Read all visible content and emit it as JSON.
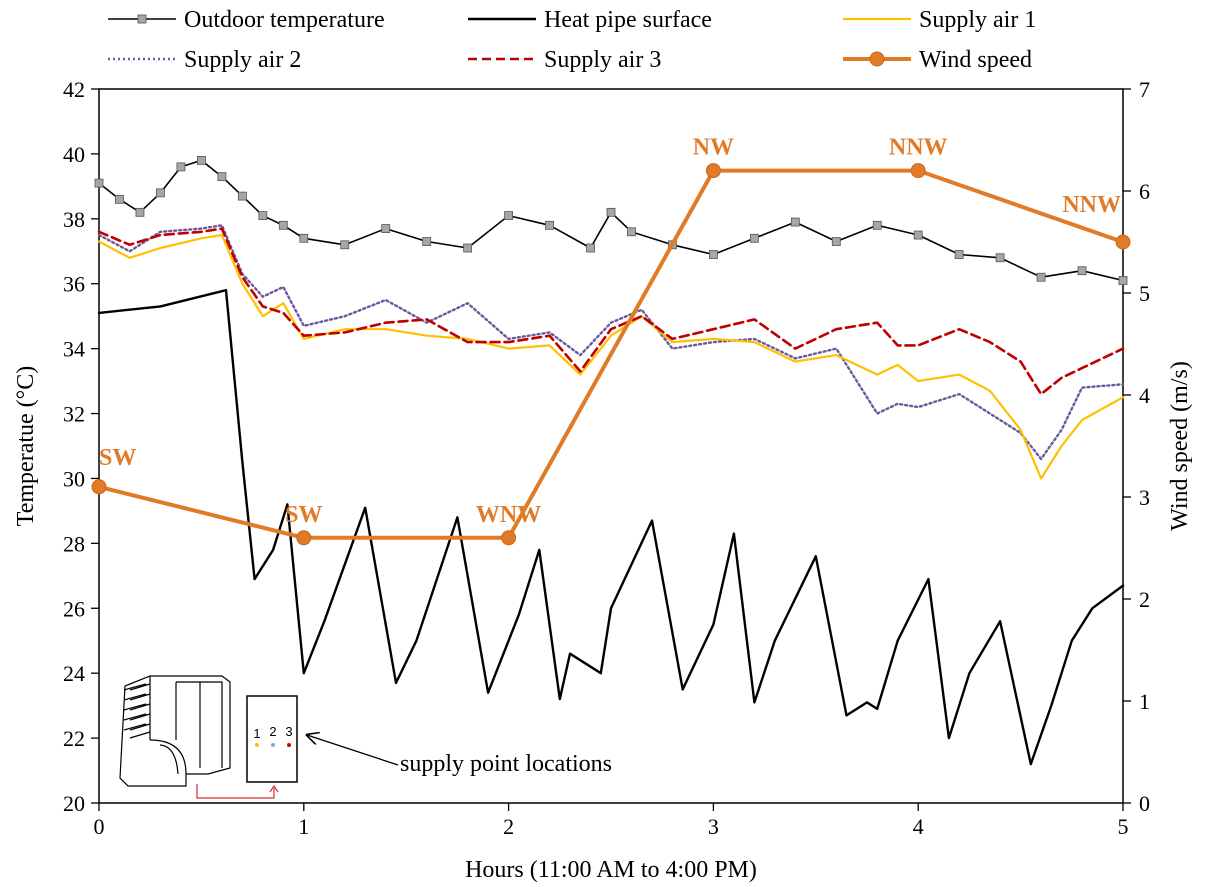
{
  "chart_data": {
    "type": "line",
    "xlabel": "Hours (11:00 AM to 4:00 PM)",
    "ylabel_left": "Temperatue (°C)",
    "ylabel_right": "Wind speed (m/s)",
    "xlim": [
      0,
      5
    ],
    "ylim_left": [
      20,
      42
    ],
    "ylim_right": [
      0,
      7
    ],
    "x_ticks": [
      "0",
      "1",
      "2",
      "3",
      "4",
      "5"
    ],
    "y_left_ticks": [
      "20",
      "22",
      "24",
      "26",
      "28",
      "30",
      "32",
      "34",
      "36",
      "38",
      "40",
      "42"
    ],
    "y_right_ticks": [
      "0",
      "1",
      "2",
      "3",
      "4",
      "5",
      "6",
      "7"
    ],
    "grid": false,
    "legend_position": "top",
    "legend": [
      {
        "label": "Outdoor temperature",
        "color": "#000000",
        "style": "line-square-marker"
      },
      {
        "label": "Heat pipe surface",
        "color": "#000000",
        "style": "solid"
      },
      {
        "label": "Supply air 1",
        "color": "#ffc000",
        "style": "solid"
      },
      {
        "label": "Supply air 2",
        "color": "#6a5a9a",
        "style": "dotted"
      },
      {
        "label": "Supply air 3",
        "color": "#c00000",
        "style": "dashed"
      },
      {
        "label": "Wind speed",
        "color": "#e07b28",
        "style": "thick-circle-marker"
      }
    ],
    "series": [
      {
        "name": "Outdoor temperature",
        "axis": "left",
        "x": [
          0,
          0.1,
          0.2,
          0.3,
          0.4,
          0.5,
          0.6,
          0.7,
          0.8,
          0.9,
          1.0,
          1.2,
          1.4,
          1.6,
          1.8,
          2.0,
          2.2,
          2.4,
          2.5,
          2.6,
          2.8,
          3.0,
          3.2,
          3.4,
          3.6,
          3.8,
          4.0,
          4.2,
          4.4,
          4.6,
          4.8,
          5.0
        ],
        "y": [
          39.1,
          38.6,
          38.2,
          38.8,
          39.6,
          39.8,
          39.3,
          38.7,
          38.1,
          37.8,
          37.4,
          37.2,
          37.7,
          37.3,
          37.1,
          38.1,
          37.8,
          37.1,
          38.2,
          37.6,
          37.2,
          36.9,
          37.4,
          37.9,
          37.3,
          37.8,
          37.5,
          36.9,
          36.8,
          36.2,
          36.4,
          36.1
        ]
      },
      {
        "name": "Heat pipe surface",
        "axis": "left",
        "x": [
          0,
          0.3,
          0.62,
          0.7,
          0.76,
          0.85,
          0.92,
          1.0,
          1.1,
          1.3,
          1.45,
          1.55,
          1.75,
          1.9,
          2.05,
          2.15,
          2.25,
          2.3,
          2.45,
          2.5,
          2.7,
          2.85,
          3.0,
          3.1,
          3.2,
          3.3,
          3.5,
          3.65,
          3.75,
          3.8,
          3.9,
          4.05,
          4.15,
          4.25,
          4.4,
          4.55,
          4.65,
          4.75,
          4.85,
          5.0
        ],
        "y": [
          35.1,
          35.3,
          35.8,
          30.5,
          26.9,
          27.8,
          29.2,
          24.0,
          25.6,
          29.1,
          23.7,
          25.0,
          28.8,
          23.4,
          25.8,
          27.8,
          23.2,
          24.6,
          24.0,
          26.0,
          28.7,
          23.5,
          25.5,
          28.3,
          23.1,
          25.0,
          27.6,
          22.7,
          23.1,
          22.9,
          25.0,
          26.9,
          22.0,
          24.0,
          25.6,
          21.2,
          23.0,
          25.0,
          26.0,
          26.7
        ]
      },
      {
        "name": "Supply air 1",
        "axis": "left",
        "x": [
          0,
          0.15,
          0.3,
          0.5,
          0.6,
          0.7,
          0.8,
          0.9,
          1.0,
          1.2,
          1.4,
          1.6,
          1.8,
          2.0,
          2.2,
          2.35,
          2.5,
          2.65,
          2.8,
          3.0,
          3.2,
          3.4,
          3.6,
          3.8,
          3.9,
          4.0,
          4.2,
          4.35,
          4.5,
          4.6,
          4.7,
          4.8,
          5.0
        ],
        "y": [
          37.3,
          36.8,
          37.1,
          37.4,
          37.5,
          36.0,
          35.0,
          35.4,
          34.3,
          34.6,
          34.6,
          34.4,
          34.3,
          34.0,
          34.1,
          33.2,
          34.4,
          35.0,
          34.2,
          34.3,
          34.2,
          33.6,
          33.8,
          33.2,
          33.5,
          33.0,
          33.2,
          32.7,
          31.5,
          30.0,
          31.0,
          31.8,
          32.5
        ]
      },
      {
        "name": "Supply air 2",
        "axis": "left",
        "x": [
          0,
          0.15,
          0.3,
          0.5,
          0.6,
          0.7,
          0.8,
          0.9,
          1.0,
          1.2,
          1.4,
          1.6,
          1.8,
          2.0,
          2.2,
          2.35,
          2.5,
          2.65,
          2.8,
          3.0,
          3.2,
          3.4,
          3.6,
          3.8,
          3.9,
          4.0,
          4.2,
          4.35,
          4.5,
          4.6,
          4.7,
          4.8,
          5.0
        ],
        "y": [
          37.5,
          37.0,
          37.6,
          37.7,
          37.8,
          36.3,
          35.6,
          35.9,
          34.7,
          35.0,
          35.5,
          34.8,
          35.4,
          34.3,
          34.5,
          33.8,
          34.8,
          35.2,
          34.0,
          34.2,
          34.3,
          33.7,
          34.0,
          32.0,
          32.3,
          32.2,
          32.6,
          32.0,
          31.4,
          30.6,
          31.5,
          32.8,
          32.9
        ]
      },
      {
        "name": "Supply air 3",
        "axis": "left",
        "x": [
          0,
          0.15,
          0.3,
          0.5,
          0.6,
          0.7,
          0.8,
          0.9,
          1.0,
          1.2,
          1.4,
          1.6,
          1.8,
          2.0,
          2.2,
          2.35,
          2.5,
          2.65,
          2.8,
          3.0,
          3.2,
          3.4,
          3.6,
          3.8,
          3.9,
          4.0,
          4.2,
          4.35,
          4.5,
          4.6,
          4.7,
          4.8,
          5.0
        ],
        "y": [
          37.6,
          37.2,
          37.5,
          37.6,
          37.7,
          36.2,
          35.3,
          35.1,
          34.4,
          34.5,
          34.8,
          34.9,
          34.2,
          34.2,
          34.4,
          33.3,
          34.6,
          35.0,
          34.3,
          34.6,
          34.9,
          34.0,
          34.6,
          34.8,
          34.1,
          34.1,
          34.6,
          34.2,
          33.6,
          32.6,
          33.1,
          33.4,
          34.0
        ]
      },
      {
        "name": "Wind speed",
        "axis": "right",
        "x": [
          0,
          1,
          2,
          3,
          4,
          5
        ],
        "y": [
          3.1,
          2.6,
          2.6,
          6.2,
          6.2,
          5.5
        ],
        "labels": [
          "SW",
          "SW",
          "WNW",
          "NW",
          "NNW",
          "NNW"
        ]
      }
    ],
    "annotations": [
      {
        "text": "supply point locations"
      }
    ],
    "inset_numbers": [
      "1",
      "2",
      "3"
    ]
  }
}
